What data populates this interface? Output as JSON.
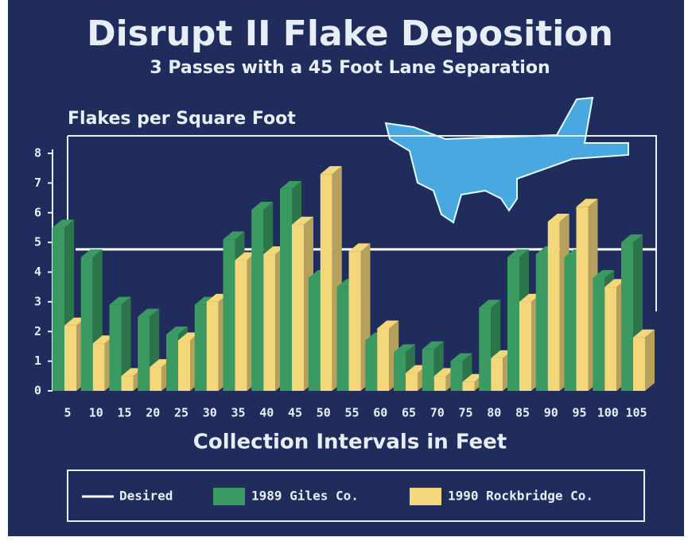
{
  "chart_data": {
    "type": "bar3d",
    "title": "Disrupt II Flake Deposition",
    "subtitle": "3 Passes with a 45 Foot Lane Separation",
    "y_label": "Flakes per Square Foot",
    "x_label": "Collection Intervals in Feet",
    "categories": [
      "5",
      "10",
      "15",
      "20",
      "25",
      "30",
      "35",
      "40",
      "45",
      "50",
      "55",
      "60",
      "65",
      "70",
      "75",
      "80",
      "85",
      "90",
      "95",
      "100",
      "105"
    ],
    "desired": {
      "name": "Desired",
      "color": "#ffffff",
      "value": 4.5
    },
    "series": [
      {
        "name": "1989 Giles Co.",
        "color": "#3a9a62",
        "values": [
          5.5,
          4.5,
          2.9,
          2.5,
          1.9,
          2.9,
          5.1,
          6.1,
          6.8,
          3.8,
          3.5,
          1.7,
          1.3,
          1.4,
          1.0,
          2.8,
          4.5,
          4.6,
          4.5,
          3.8,
          5.0
        ]
      },
      {
        "name": "1990 Rockbridge Co.",
        "color": "#f3d77a",
        "values": [
          2.2,
          1.6,
          0.5,
          0.8,
          1.7,
          3.0,
          4.4,
          4.6,
          5.6,
          7.3,
          4.7,
          2.1,
          0.6,
          0.5,
          0.3,
          1.1,
          3.0,
          5.7,
          6.2,
          3.5,
          1.8
        ]
      }
    ],
    "ylim": [
      0,
      8
    ],
    "yticks": [
      0,
      1,
      2,
      3,
      4,
      5,
      6,
      7,
      8
    ]
  }
}
